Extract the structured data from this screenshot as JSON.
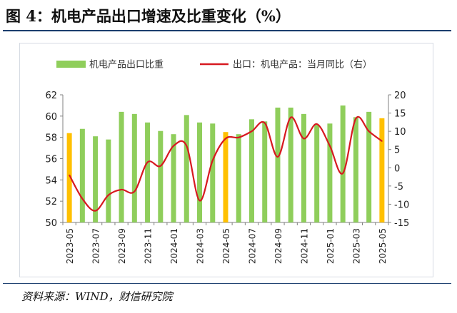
{
  "title": "图 4：机电产品出口增速及比重变化（%）",
  "source": "资料来源：WIND，财信研究院",
  "colors": {
    "bar": "#8fce5b",
    "bar_highlight": "#ffc000",
    "line": "#d71920",
    "axis": "#808080"
  },
  "chart_data": {
    "type": "bar+line",
    "legend": [
      {
        "label": "机电产品出口比重",
        "kind": "bar"
      },
      {
        "label": "出口：机电产品：当月同比（右）",
        "kind": "line"
      }
    ],
    "legend_position": "top",
    "grid": false,
    "y_left": {
      "min": 50,
      "max": 62,
      "ticks": [
        50,
        52,
        54,
        56,
        58,
        60,
        62
      ]
    },
    "y_right": {
      "min": -15,
      "max": 20,
      "ticks": [
        -15,
        -10,
        -5,
        0,
        5,
        10,
        15,
        20
      ]
    },
    "x_tick_labels": [
      "2023-05",
      "2023-07",
      "2023-09",
      "2023-11",
      "2024-01",
      "2024-03",
      "2024-05",
      "2024-07",
      "2024-09",
      "2024-11",
      "2025-01",
      "2025-03",
      "2025-05"
    ],
    "categories": [
      "2023-05",
      "2023-06",
      "2023-07",
      "2023-08",
      "2023-09",
      "2023-10",
      "2023-11",
      "2023-12",
      "2024-01",
      "2024-02",
      "2024-03",
      "2024-04",
      "2024-05",
      "2024-06",
      "2024-07",
      "2024-08",
      "2024-09",
      "2024-10",
      "2024-11",
      "2024-12",
      "2025-01",
      "2025-02",
      "2025-03",
      "2025-04",
      "2025-05"
    ],
    "series": [
      {
        "name": "机电产品出口比重",
        "type": "bar",
        "values": [
          58.4,
          58.8,
          58.1,
          57.8,
          60.4,
          60.2,
          59.4,
          58.6,
          58.3,
          60.1,
          59.4,
          59.3,
          58.5,
          58.3,
          59.7,
          59.5,
          60.8,
          60.8,
          60.2,
          59.2,
          59.3,
          61.0,
          59.9,
          60.4,
          59.8
        ],
        "highlight": [
          "2023-05",
          "2024-05",
          "2025-05"
        ]
      },
      {
        "name": "出口：机电产品：当月同比（右）",
        "type": "line",
        "axis": "right",
        "values": [
          -2,
          -8.5,
          -11.8,
          -7.5,
          -6,
          -6.5,
          1.5,
          0.5,
          6,
          6,
          -9,
          2,
          8,
          8.3,
          10,
          12.3,
          3,
          13.8,
          8,
          12,
          6,
          -1.5,
          13.5,
          10,
          7.3
        ]
      }
    ]
  }
}
